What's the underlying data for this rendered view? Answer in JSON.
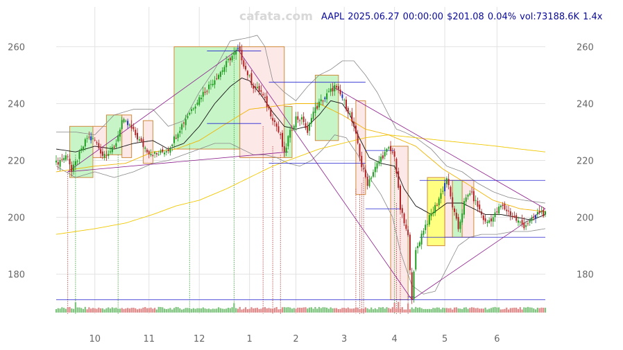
{
  "watermark": "cafata.com",
  "header": {
    "symbol": "AAPL",
    "date": "2025.06.27",
    "time": "00:00:00",
    "price": "$201.08",
    "change": "0.04%",
    "volume": "vol:73188.6K",
    "ratio": "1.4x"
  },
  "colors": {
    "up": "#1a9a1a",
    "down": "#b02020",
    "signal": "#1030c0",
    "ma_short": "#111111",
    "ma_mid": "#f0b400",
    "ma_long": "#f0c800",
    "band": "#888888",
    "trend": "#8a1a8a",
    "level": "#2020d0",
    "zone_up_fill": "#c8f5c8",
    "zone_down_fill": "#fde8e8",
    "zone_highlight_fill": "#ffff80",
    "zone_border": "#d08a3a",
    "vol_up": "#7fc47f",
    "vol_down": "#e08a8a"
  },
  "chart_data": {
    "type": "candlestick",
    "title": "AAPL 2025.06.27 00:00:00 $201.08 0.04% vol:73188.6K 1.4x",
    "ylim": [
      166,
      274
    ],
    "yticks": [
      180,
      200,
      220,
      240,
      260
    ],
    "xlim": [
      0,
      253
    ],
    "xticks": [
      {
        "label": "10",
        "x": 20
      },
      {
        "label": "11",
        "x": 48
      },
      {
        "label": "12",
        "x": 74
      },
      {
        "label": "1",
        "x": 100
      },
      {
        "label": "2",
        "x": 124
      },
      {
        "label": "3",
        "x": 149
      },
      {
        "label": "4",
        "x": 175
      },
      {
        "label": "5",
        "x": 201
      },
      {
        "label": "6",
        "x": 228
      }
    ],
    "grid": true,
    "close_anchors": [
      [
        0,
        219
      ],
      [
        6,
        222
      ],
      [
        8,
        216
      ],
      [
        12,
        222
      ],
      [
        16,
        228
      ],
      [
        20,
        227
      ],
      [
        24,
        222
      ],
      [
        30,
        224
      ],
      [
        34,
        234
      ],
      [
        38,
        232
      ],
      [
        44,
        226
      ],
      [
        48,
        223
      ],
      [
        52,
        222
      ],
      [
        58,
        224
      ],
      [
        62,
        229
      ],
      [
        68,
        236
      ],
      [
        74,
        242
      ],
      [
        80,
        247
      ],
      [
        86,
        252
      ],
      [
        90,
        256
      ],
      [
        94,
        259
      ],
      [
        96,
        256
      ],
      [
        98,
        252
      ],
      [
        102,
        246
      ],
      [
        106,
        244
      ],
      [
        110,
        238
      ],
      [
        114,
        232
      ],
      [
        116,
        228
      ],
      [
        118,
        222
      ],
      [
        120,
        228
      ],
      [
        124,
        235
      ],
      [
        128,
        234
      ],
      [
        130,
        229
      ],
      [
        132,
        236
      ],
      [
        136,
        240
      ],
      [
        140,
        243
      ],
      [
        144,
        246
      ],
      [
        148,
        242
      ],
      [
        152,
        236
      ],
      [
        156,
        226
      ],
      [
        158,
        218
      ],
      [
        161,
        212
      ],
      [
        164,
        216
      ],
      [
        168,
        221
      ],
      [
        172,
        224
      ],
      [
        175,
        222
      ],
      [
        178,
        203
      ],
      [
        182,
        193
      ],
      [
        184,
        172
      ],
      [
        186,
        188
      ],
      [
        190,
        196
      ],
      [
        194,
        201
      ],
      [
        197,
        205
      ],
      [
        200,
        210
      ],
      [
        202,
        214
      ],
      [
        204,
        207
      ],
      [
        206,
        201
      ],
      [
        208,
        196
      ],
      [
        211,
        205
      ],
      [
        214,
        209
      ],
      [
        218,
        204
      ],
      [
        222,
        198
      ],
      [
        226,
        200
      ],
      [
        230,
        204
      ],
      [
        234,
        202
      ],
      [
        238,
        199
      ],
      [
        242,
        197
      ],
      [
        246,
        199
      ],
      [
        250,
        202
      ],
      [
        253,
        201
      ]
    ],
    "ma_short_anchors": [
      [
        0,
        224
      ],
      [
        10,
        223
      ],
      [
        20,
        225
      ],
      [
        30,
        224
      ],
      [
        40,
        226
      ],
      [
        50,
        227
      ],
      [
        58,
        224
      ],
      [
        66,
        226
      ],
      [
        74,
        232
      ],
      [
        82,
        240
      ],
      [
        90,
        246
      ],
      [
        96,
        249
      ],
      [
        100,
        248
      ],
      [
        106,
        243
      ],
      [
        112,
        237
      ],
      [
        118,
        232
      ],
      [
        124,
        231
      ],
      [
        130,
        232
      ],
      [
        136,
        236
      ],
      [
        142,
        241
      ],
      [
        148,
        240
      ],
      [
        152,
        236
      ],
      [
        156,
        229
      ],
      [
        162,
        221
      ],
      [
        168,
        219
      ],
      [
        175,
        218
      ],
      [
        180,
        210
      ],
      [
        186,
        204
      ],
      [
        194,
        201
      ],
      [
        202,
        205
      ],
      [
        210,
        205
      ],
      [
        216,
        203
      ],
      [
        222,
        201
      ],
      [
        230,
        201
      ],
      [
        238,
        200
      ],
      [
        246,
        199
      ],
      [
        253,
        201
      ]
    ],
    "ma_mid_anchors": [
      [
        0,
        216
      ],
      [
        20,
        218
      ],
      [
        36,
        219
      ],
      [
        50,
        223
      ],
      [
        62,
        224
      ],
      [
        74,
        227
      ],
      [
        88,
        233
      ],
      [
        100,
        238
      ],
      [
        112,
        239
      ],
      [
        124,
        240
      ],
      [
        136,
        240
      ],
      [
        148,
        236
      ],
      [
        160,
        231
      ],
      [
        172,
        229
      ],
      [
        186,
        225
      ],
      [
        200,
        217
      ],
      [
        212,
        212
      ],
      [
        226,
        206
      ],
      [
        240,
        203
      ],
      [
        253,
        202
      ]
    ],
    "ma_long_anchors": [
      [
        0,
        194
      ],
      [
        20,
        196
      ],
      [
        36,
        198
      ],
      [
        50,
        201
      ],
      [
        62,
        204
      ],
      [
        74,
        206
      ],
      [
        88,
        210
      ],
      [
        100,
        214
      ],
      [
        112,
        218
      ],
      [
        124,
        221
      ],
      [
        136,
        224
      ],
      [
        148,
        226
      ],
      [
        160,
        228
      ],
      [
        172,
        229
      ],
      [
        186,
        228
      ],
      [
        200,
        227
      ],
      [
        214,
        226
      ],
      [
        228,
        225
      ],
      [
        240,
        224
      ],
      [
        253,
        223
      ]
    ],
    "band_upper_anchors": [
      [
        0,
        230
      ],
      [
        10,
        230
      ],
      [
        20,
        229
      ],
      [
        30,
        236
      ],
      [
        40,
        238
      ],
      [
        50,
        238
      ],
      [
        58,
        232
      ],
      [
        66,
        234
      ],
      [
        74,
        244
      ],
      [
        82,
        252
      ],
      [
        90,
        262
      ],
      [
        98,
        263
      ],
      [
        104,
        264
      ],
      [
        108,
        260
      ],
      [
        112,
        248
      ],
      [
        118,
        244
      ],
      [
        124,
        241
      ],
      [
        130,
        246
      ],
      [
        136,
        250
      ],
      [
        142,
        252
      ],
      [
        148,
        255
      ],
      [
        154,
        255
      ],
      [
        160,
        250
      ],
      [
        166,
        244
      ],
      [
        172,
        236
      ],
      [
        176,
        231
      ],
      [
        180,
        230
      ],
      [
        186,
        228
      ],
      [
        194,
        224
      ],
      [
        202,
        218
      ],
      [
        210,
        216
      ],
      [
        218,
        212
      ],
      [
        226,
        209
      ],
      [
        234,
        207
      ],
      [
        242,
        206
      ],
      [
        253,
        205
      ]
    ],
    "band_lower_anchors": [
      [
        0,
        218
      ],
      [
        10,
        214
      ],
      [
        20,
        216
      ],
      [
        30,
        214
      ],
      [
        40,
        216
      ],
      [
        50,
        219
      ],
      [
        58,
        220
      ],
      [
        66,
        222
      ],
      [
        74,
        224
      ],
      [
        82,
        226
      ],
      [
        90,
        226
      ],
      [
        96,
        224
      ],
      [
        102,
        222
      ],
      [
        108,
        222
      ],
      [
        114,
        221
      ],
      [
        120,
        219
      ],
      [
        126,
        218
      ],
      [
        132,
        220
      ],
      [
        138,
        224
      ],
      [
        144,
        229
      ],
      [
        150,
        228
      ],
      [
        156,
        222
      ],
      [
        162,
        214
      ],
      [
        168,
        208
      ],
      [
        174,
        200
      ],
      [
        178,
        188
      ],
      [
        184,
        176
      ],
      [
        190,
        173
      ],
      [
        196,
        174
      ],
      [
        202,
        182
      ],
      [
        208,
        190
      ],
      [
        214,
        193
      ],
      [
        220,
        194
      ],
      [
        228,
        194
      ],
      [
        236,
        195
      ],
      [
        244,
        195
      ],
      [
        253,
        196
      ]
    ],
    "zones": [
      {
        "kind": "up",
        "x0": 7,
        "x1": 19,
        "y0": 214,
        "y1": 232
      },
      {
        "kind": "down",
        "x0": 19,
        "x1": 26,
        "y0": 221,
        "y1": 232
      },
      {
        "kind": "up",
        "x0": 26,
        "x1": 34,
        "y0": 222,
        "y1": 236
      },
      {
        "kind": "down",
        "x0": 34,
        "x1": 39,
        "y0": 221,
        "y1": 236
      },
      {
        "kind": "down",
        "x0": 45,
        "x1": 50,
        "y0": 219,
        "y1": 234
      },
      {
        "kind": "up",
        "x0": 61,
        "x1": 95,
        "y0": 224,
        "y1": 260
      },
      {
        "kind": "down",
        "x0": 95,
        "x1": 118,
        "y0": 221,
        "y1": 260
      },
      {
        "kind": "up",
        "x0": 118,
        "x1": 122,
        "y0": 221,
        "y1": 239
      },
      {
        "kind": "up",
        "x0": 134,
        "x1": 146,
        "y0": 227,
        "y1": 250
      },
      {
        "kind": "down",
        "x0": 155,
        "x1": 160,
        "y0": 208,
        "y1": 241
      },
      {
        "kind": "down",
        "x0": 173,
        "x1": 182,
        "y0": 171,
        "y1": 225
      },
      {
        "kind": "highlight",
        "x0": 192,
        "x1": 201,
        "y0": 190,
        "y1": 214
      },
      {
        "kind": "down",
        "x0": 201,
        "x1": 205,
        "y0": 193,
        "y1": 213
      },
      {
        "kind": "up",
        "x0": 205,
        "x1": 210,
        "y0": 193,
        "y1": 213
      },
      {
        "kind": "down",
        "x0": 210,
        "x1": 216,
        "y0": 193,
        "y1": 213
      }
    ],
    "trend_lines": [
      [
        6,
        216,
        94,
        259
      ],
      [
        6,
        216,
        120,
        223
      ],
      [
        94,
        259,
        184,
        171
      ],
      [
        143,
        246,
        253,
        203
      ],
      [
        184,
        171,
        253,
        203
      ]
    ],
    "level_lines": [
      [
        78,
        106,
        258.5
      ],
      [
        78,
        106,
        233
      ],
      [
        110,
        160,
        247.5
      ],
      [
        110,
        160,
        219
      ],
      [
        160,
        175,
        223.5
      ],
      [
        160,
        178,
        203
      ],
      [
        188,
        253,
        213
      ],
      [
        188,
        253,
        193
      ],
      [
        0,
        253,
        171
      ],
      [
        182,
        185,
        172
      ]
    ],
    "signal_lines": [
      {
        "x": 6,
        "ymin": 166,
        "ymax": 216,
        "color": "#b03030"
      },
      {
        "x": 10,
        "ymin": 166,
        "ymax": 222,
        "color": "#2a9a2a"
      },
      {
        "x": 32,
        "ymin": 166,
        "ymax": 222,
        "color": "#2a9a2a"
      },
      {
        "x": 69,
        "ymin": 166,
        "ymax": 226,
        "color": "#2a9a2a"
      },
      {
        "x": 92,
        "ymin": 166,
        "ymax": 256,
        "color": "#2a9a2a"
      },
      {
        "x": 107,
        "ymin": 166,
        "ymax": 232,
        "color": "#b03030"
      },
      {
        "x": 112,
        "ymin": 166,
        "ymax": 225,
        "color": "#b03030"
      },
      {
        "x": 116,
        "ymin": 166,
        "ymax": 222,
        "color": "#b03030"
      },
      {
        "x": 155,
        "ymin": 166,
        "ymax": 210,
        "color": "#b03030"
      },
      {
        "x": 157,
        "ymin": 166,
        "ymax": 208,
        "color": "#b03030"
      },
      {
        "x": 158,
        "ymin": 166,
        "ymax": 212,
        "color": "#b03030"
      },
      {
        "x": 159,
        "ymin": 166,
        "ymax": 214,
        "color": "#b03030"
      },
      {
        "x": 175,
        "ymin": 166,
        "ymax": 220,
        "color": "#2a9a2a"
      },
      {
        "x": 176,
        "ymin": 166,
        "ymax": 205,
        "color": "#b03030"
      },
      {
        "x": 178,
        "ymin": 166,
        "ymax": 200,
        "color": "#b03030"
      },
      {
        "x": 182,
        "ymin": 166,
        "ymax": 173,
        "color": "#b03030"
      }
    ],
    "blue_candles": [
      18,
      37,
      94,
      139,
      148,
      201,
      248
    ],
    "volume_spikes": [
      {
        "x": 10,
        "v": 3.5
      },
      {
        "x": 92,
        "v": 3.2
      },
      {
        "x": 175,
        "v": 3.3
      },
      {
        "x": 177,
        "v": 3.6
      },
      {
        "x": 182,
        "v": 3.0
      }
    ]
  }
}
